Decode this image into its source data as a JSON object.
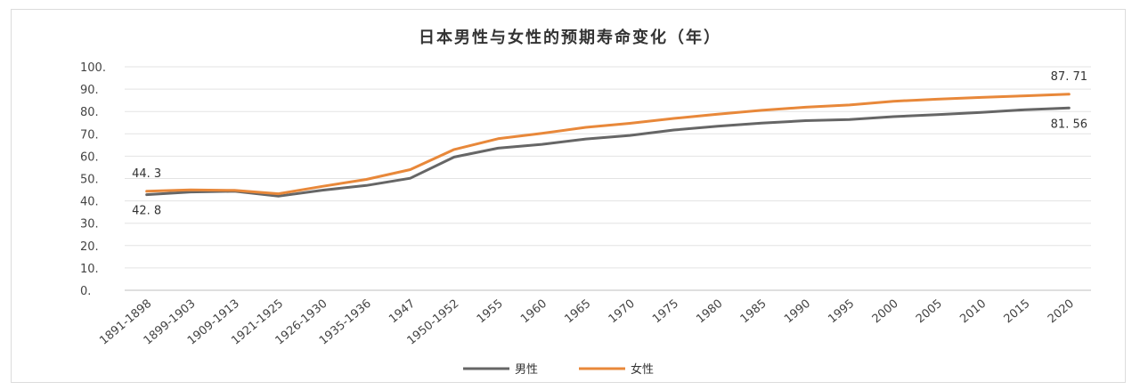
{
  "chart_data": {
    "type": "line",
    "title": "日本男性与女性的预期寿命变化（年）",
    "categories": [
      "1891-1898",
      "1899-1903",
      "1909-1913",
      "1921-1925",
      "1926-1930",
      "1935-1936",
      "1947",
      "1950-1952",
      "1955",
      "1960",
      "1965",
      "1970",
      "1975",
      "1980",
      "1985",
      "1990",
      "1995",
      "2000",
      "2005",
      "2010",
      "2015",
      "2020"
    ],
    "ytick_labels": [
      "0.",
      "10.",
      "20.",
      "30.",
      "40.",
      "50.",
      "60.",
      "70.",
      "80.",
      "90.",
      "100."
    ],
    "ylim": [
      0,
      100
    ],
    "grid": true,
    "legend_position": "bottom",
    "series": [
      {
        "name": "男性",
        "color": "#666666",
        "values": [
          42.8,
          44.0,
          44.3,
          42.1,
          44.8,
          46.9,
          50.1,
          59.6,
          63.6,
          65.3,
          67.7,
          69.3,
          71.7,
          73.4,
          74.8,
          75.9,
          76.4,
          77.7,
          78.6,
          79.6,
          80.8,
          81.56
        ]
      },
      {
        "name": "女性",
        "color": "#E8883A",
        "values": [
          44.3,
          44.9,
          44.7,
          43.2,
          46.5,
          49.6,
          54.0,
          63.0,
          67.8,
          70.2,
          72.9,
          74.7,
          76.9,
          78.8,
          80.5,
          81.9,
          82.9,
          84.6,
          85.5,
          86.3,
          87.0,
          87.71
        ]
      }
    ],
    "annotations": [
      {
        "text": "44. 3",
        "series": 1,
        "index": 0
      },
      {
        "text": "42. 8",
        "series": 0,
        "index": 0
      },
      {
        "text": "87. 71",
        "series": 1,
        "index": 21
      },
      {
        "text": "81. 56",
        "series": 0,
        "index": 21
      }
    ]
  }
}
